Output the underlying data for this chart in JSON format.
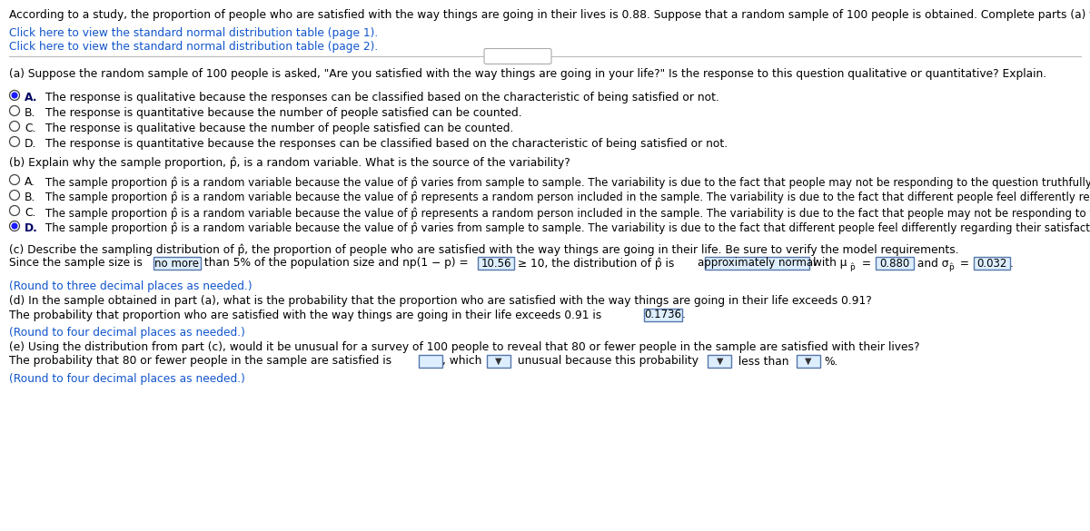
{
  "bg_color": "#ffffff",
  "text_color": "#000000",
  "link_color": "#1155cc",
  "figsize": [
    12.0,
    5.85
  ],
  "dpi": 100,
  "header": "According to a study, the proportion of people who are satisfied with the way things are going in their lives is 0.88. Suppose that a random sample of 100 people is obtained. Complete parts (a) through (e) below.",
  "link1": "Click here to view the standard normal distribution table (page 1).",
  "link2": "Click here to view the standard normal distribution table (page 2).",
  "dots_text": ".....",
  "part_a_q": "(a) Suppose the random sample of 100 people is asked, \"Are you satisfied with the way things are going in your life?\" Is the response to this question qualitative or quantitative? Explain.",
  "part_a_opts": [
    {
      "label": "A.",
      "text": "The response is qualitative because the responses can be classified based on the characteristic of being satisfied or not.",
      "sel": true
    },
    {
      "label": "B.",
      "text": "The response is quantitative because the number of people satisfied can be counted.",
      "sel": false
    },
    {
      "label": "C.",
      "text": "The response is qualitative because the number of people satisfied can be counted.",
      "sel": false
    },
    {
      "label": "D.",
      "text": "The response is quantitative because the responses can be classified based on the characteristic of being satisfied or not.",
      "sel": false
    }
  ],
  "part_b_q": "(b) Explain why the sample proportion, p̂, is a random variable. What is the source of the variability?",
  "part_b_opts": [
    {
      "label": "A.",
      "text": "The sample proportion p̂ is a random variable because the value of p̂ varies from sample to sample. The variability is due to the fact that people may not be responding to the question truthfully.",
      "sel": false
    },
    {
      "label": "B.",
      "text": "The sample proportion p̂ is a random variable because the value of p̂ represents a random person included in the sample. The variability is due to the fact that different people feel differently regarding their satisfaction.",
      "sel": false
    },
    {
      "label": "C.",
      "text": "The sample proportion p̂ is a random variable because the value of p̂ represents a random person included in the sample. The variability is due to the fact that people may not be responding to the question truthfully.",
      "sel": false
    },
    {
      "label": "D.",
      "text": "The sample proportion p̂ is a random variable because the value of p̂ varies from sample to sample. The variability is due to the fact that different people feel differently regarding their satisfaction.",
      "sel": true
    }
  ],
  "part_c_q": "(c) Describe the sampling distribution of p̂, the proportion of people who are satisfied with the way things are going in their life. Be sure to verify the model requirements.",
  "part_c_note": "(Round to three decimal places as needed.)",
  "part_d_q": "(d) In the sample obtained in part (a), what is the probability that the proportion who are satisfied with the way things are going in their life exceeds 0.91?",
  "part_d_line": "The probability that proportion who are satisfied with the way things are going in their life exceeds 0.91 is ",
  "part_d_val": "0.1736",
  "part_d_note": "(Round to four decimal places as needed.)",
  "part_e_q": "(e) Using the distribution from part (c), would it be unusual for a survey of 100 people to reveal that 80 or fewer people in the sample are satisfied with their lives?",
  "part_e_line": "The probability that 80 or fewer people in the sample are satisfied is ",
  "part_e_note": "(Round to four decimal places as needed.)"
}
